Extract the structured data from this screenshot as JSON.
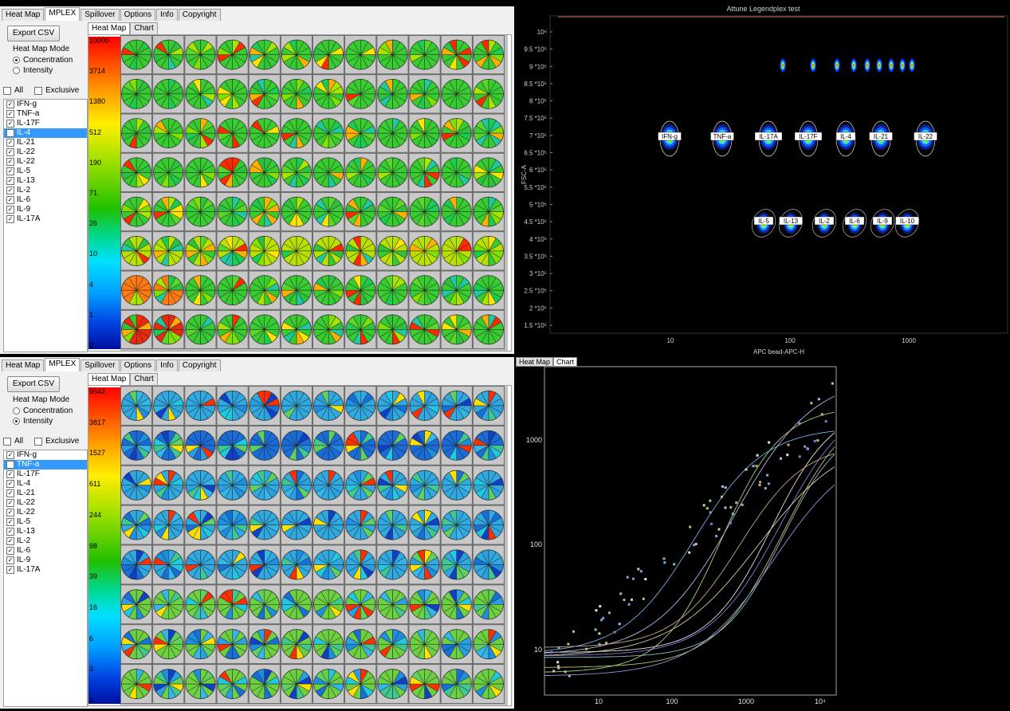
{
  "top_app": {
    "tabs": [
      "Heat Map",
      "MPLEX",
      "Spillover",
      "Options",
      "Info",
      "Copyright"
    ],
    "active_tab": "MPLEX",
    "export_label": "Export CSV",
    "mode_title": "Heat Map Mode",
    "mode_options": [
      "Concentration",
      "Intensity"
    ],
    "selected_mode": "Concentration",
    "all_label": "All",
    "exclusive_label": "Exclusive",
    "analytes": [
      "IFN-g",
      "TNF-a",
      "IL-17F",
      "IL-4",
      "IL-21",
      "IL-22",
      "IL-22",
      "IL-5",
      "IL-13",
      "IL-2",
      "IL-6",
      "IL-9",
      "IL-17A"
    ],
    "selected_analyte": "IL-4",
    "sub_tabs": [
      "Heat Map",
      "Chart"
    ],
    "scale_ticks": [
      "10000",
      "3714",
      "1380",
      "512",
      "190",
      "71",
      "26",
      "10",
      "4",
      "1",
      "0"
    ]
  },
  "bottom_app": {
    "tabs": [
      "Heat Map",
      "MPLEX",
      "Spillover",
      "Options",
      "Info",
      "Copyright"
    ],
    "active_tab": "MPLEX",
    "export_label": "Export CSV",
    "mode_title": "Heat Map Mode",
    "mode_options": [
      "Concentration",
      "Intensity"
    ],
    "selected_mode": "Intensity",
    "all_label": "All",
    "exclusive_label": "Exclusive",
    "analytes": [
      "IFN-g",
      "TNF-a",
      "IL-17F",
      "IL-4",
      "IL-21",
      "IL-22",
      "IL-22",
      "IL-5",
      "IL-13",
      "IL-2",
      "IL-6",
      "IL-9",
      "IL-17A"
    ],
    "selected_analyte": "TNF-a",
    "sub_tabs": [
      "Heat Map",
      "Chart"
    ],
    "scale_ticks": [
      "9542",
      "3817",
      "1527",
      "611",
      "244",
      "98",
      "39",
      "16",
      "6",
      "3",
      "1"
    ]
  },
  "scatter": {
    "title": "Attune Legendplex test",
    "xlabel": "APC bead-APC-H",
    "ylabel": "FSC-A",
    "x_ticks": [
      "10",
      "100",
      "1000"
    ],
    "y_ticks": [
      "10⁶",
      "9.5 *10⁵",
      "9 *10⁵",
      "8.5 *10⁵",
      "8 *10⁵",
      "7.5 *10⁵",
      "7 *10⁵",
      "6.5 *10⁵",
      "6 *10⁵",
      "5.5 *10⁵",
      "5 *10⁵",
      "4.5 *10⁵",
      "4 *10⁵",
      "3.5 *10⁵",
      "3 *10⁵",
      "2.5 *10⁵",
      "2 *10⁵",
      "1.5 *10⁵"
    ],
    "gates_top": [
      "IFN-g",
      "TNF-a",
      "IL-17A",
      "IL-17F",
      "IL-4",
      "IL-21",
      "IL-22"
    ],
    "gates_bottom": [
      "IL-5",
      "IL-13",
      "IL-2",
      "IL-6",
      "IL-9",
      "IL-10"
    ]
  },
  "curve": {
    "tabs": [
      "Heat Map",
      "Chart"
    ],
    "active_tab": "Chart",
    "x_ticks": [
      "10",
      "100",
      "1000",
      "10⁴"
    ],
    "y_ticks": [
      "1000",
      "100",
      "10"
    ]
  },
  "colors": {
    "panel_bg": "#f0f0f0",
    "selection": "#3399ff",
    "plot_bg": "#000000"
  }
}
